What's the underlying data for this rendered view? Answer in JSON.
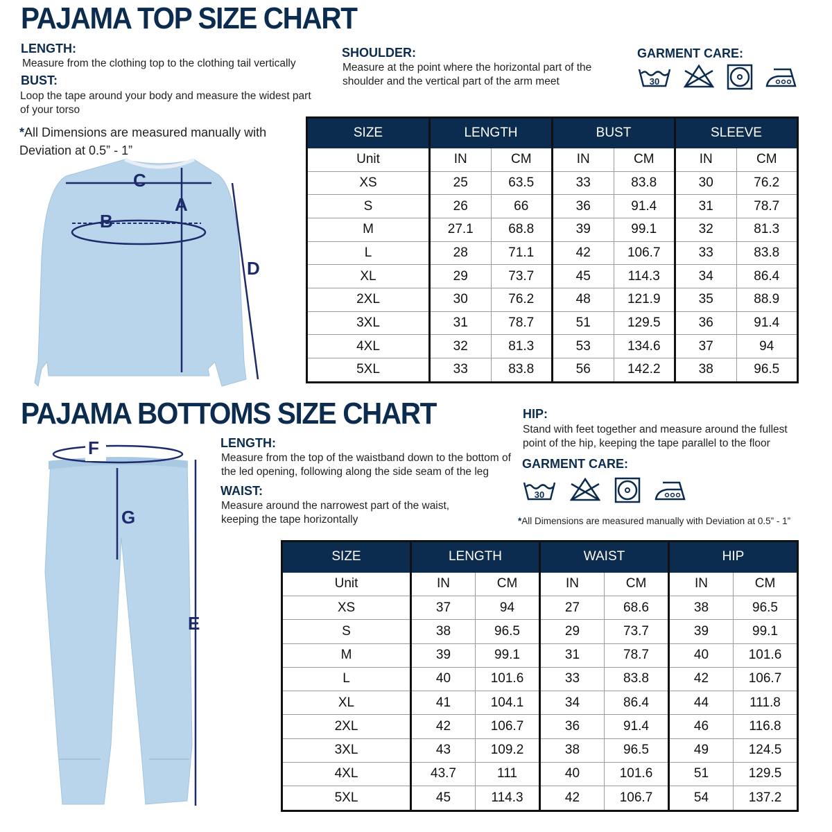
{
  "top": {
    "title": "PAJAMA TOP SIZE CHART",
    "length_label": "LENGTH:",
    "length_text": "Measure from the clothing top to the clothing tail vertically",
    "bust_label": "BUST:",
    "bust_text": "Loop the tape around your body and measure the widest part of your torso",
    "shoulder_label": "SHOULDER:",
    "shoulder_text": "Measure at the point where the horizontal part of the shoulder and the vertical part of the arm meet",
    "care_label": "GARMENT CARE:",
    "care_icons": [
      "wash-30-icon",
      "no-bleach-icon",
      "tumble-dry-icon",
      "iron-high-icon"
    ],
    "note_star": "*",
    "note": "All Dimensions are measured manually with Deviation at 0.5” - 1”",
    "diagram_labels": {
      "a": "A",
      "b": "B",
      "c": "C",
      "d": "D"
    },
    "table": {
      "headers": [
        "SIZE",
        "LENGTH",
        "BUST",
        "SLEEVE"
      ],
      "unit_row": [
        "Unit",
        "IN",
        "CM",
        "IN",
        "CM",
        "IN",
        "CM"
      ],
      "rows": [
        [
          "XS",
          "25",
          "63.5",
          "33",
          "83.8",
          "30",
          "76.2"
        ],
        [
          "S",
          "26",
          "66",
          "36",
          "91.4",
          "31",
          "78.7"
        ],
        [
          "M",
          "27.1",
          "68.8",
          "39",
          "99.1",
          "32",
          "81.3"
        ],
        [
          "L",
          "28",
          "71.1",
          "42",
          "106.7",
          "33",
          "83.8"
        ],
        [
          "XL",
          "29",
          "73.7",
          "45",
          "114.3",
          "34",
          "86.4"
        ],
        [
          "2XL",
          "30",
          "76.2",
          "48",
          "121.9",
          "35",
          "88.9"
        ],
        [
          "3XL",
          "31",
          "78.7",
          "51",
          "129.5",
          "36",
          "91.4"
        ],
        [
          "4XL",
          "32",
          "81.3",
          "53",
          "134.6",
          "37",
          "94"
        ],
        [
          "5XL",
          "33",
          "83.8",
          "56",
          "142.2",
          "38",
          "96.5"
        ]
      ]
    }
  },
  "bottom": {
    "title": "PAJAMA BOTTOMS SIZE CHART",
    "length_label": "LENGTH:",
    "length_text": "Measure from the top of the waistband down to the bottom of the led opening, following along the side seam of the leg",
    "waist_label": "WAIST:",
    "waist_text": "Measure around the narrowest part of the waist, keeping the tape horizontally",
    "hip_label": "HIP:",
    "hip_text": "Stand with feet together and measure around the fullest point of the hip, keeping the tape parallel to the floor",
    "care_label": "GARMENT CARE:",
    "care_icons": [
      "wash-30-icon",
      "no-bleach-icon",
      "tumble-dry-icon",
      "iron-high-icon"
    ],
    "note_star": "*",
    "note": "All Dimensions are measured manually with Deviation at 0.5” - 1”",
    "diagram_labels": {
      "e": "E",
      "f": "F",
      "g": "G"
    },
    "table": {
      "headers": [
        "SIZE",
        "LENGTH",
        "WAIST",
        "HIP"
      ],
      "unit_row": [
        "Unit",
        "IN",
        "CM",
        "IN",
        "CM",
        "IN",
        "CM"
      ],
      "rows": [
        [
          "XS",
          "37",
          "94",
          "27",
          "68.6",
          "38",
          "96.5"
        ],
        [
          "S",
          "38",
          "96.5",
          "29",
          "73.7",
          "39",
          "99.1"
        ],
        [
          "M",
          "39",
          "99.1",
          "31",
          "78.7",
          "40",
          "101.6"
        ],
        [
          "L",
          "40",
          "101.6",
          "33",
          "83.8",
          "42",
          "106.7"
        ],
        [
          "XL",
          "41",
          "104.1",
          "34",
          "86.4",
          "44",
          "111.8"
        ],
        [
          "2XL",
          "42",
          "106.7",
          "36",
          "91.4",
          "46",
          "116.8"
        ],
        [
          "3XL",
          "43",
          "109.2",
          "38",
          "96.5",
          "49",
          "124.5"
        ],
        [
          "4XL",
          "43.7",
          "111",
          "40",
          "101.6",
          "51",
          "129.5"
        ],
        [
          "5XL",
          "45",
          "114.3",
          "42",
          "106.7",
          "54",
          "137.2"
        ]
      ]
    }
  },
  "colors": {
    "navy": "#0b2b4f",
    "garment": "#b9d5ec"
  },
  "care_wash_temp": "30"
}
